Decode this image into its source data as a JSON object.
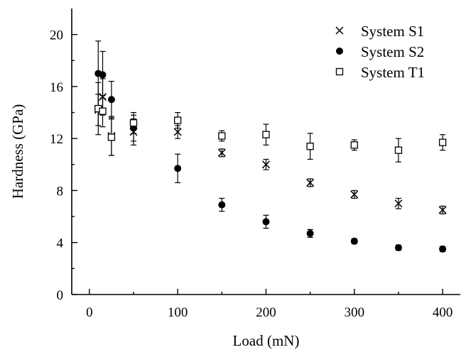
{
  "chart_data": {
    "type": "scatter",
    "xlabel": "Load (mN)",
    "ylabel": "Hardness (GPa)",
    "xlim": [
      -20,
      420
    ],
    "ylim": [
      0,
      22
    ],
    "xticks": [
      "0",
      "100",
      "200",
      "300",
      "400"
    ],
    "yticks": [
      "0",
      "4",
      "8",
      "12",
      "16",
      "20"
    ],
    "grid": false,
    "legend_position": "top-right",
    "series": [
      {
        "name": "System S1",
        "marker": "x",
        "points": [
          {
            "x": 10,
            "y": 14.2,
            "err": 1.2
          },
          {
            "x": 15,
            "y": 15.2,
            "err": 1.4
          },
          {
            "x": 25,
            "y": 12.2,
            "err": 1.5
          },
          {
            "x": 50,
            "y": 12.5,
            "err": 1.0
          },
          {
            "x": 100,
            "y": 12.5,
            "err": 0.5
          },
          {
            "x": 150,
            "y": 10.9,
            "err": 0.3
          },
          {
            "x": 200,
            "y": 10.0,
            "err": 0.4
          },
          {
            "x": 250,
            "y": 8.6,
            "err": 0.3
          },
          {
            "x": 300,
            "y": 7.7,
            "err": 0.3
          },
          {
            "x": 350,
            "y": 7.0,
            "err": 0.4
          },
          {
            "x": 400,
            "y": 6.5,
            "err": 0.3
          }
        ]
      },
      {
        "name": "System S2",
        "marker": "filled-circle",
        "points": [
          {
            "x": 10,
            "y": 17.0,
            "err": 2.5
          },
          {
            "x": 15,
            "y": 16.9,
            "err": 1.8
          },
          {
            "x": 25,
            "y": 15.0,
            "err": 1.4
          },
          {
            "x": 50,
            "y": 12.8,
            "err": 1.0
          },
          {
            "x": 100,
            "y": 9.7,
            "err": 1.1
          },
          {
            "x": 150,
            "y": 6.9,
            "err": 0.5
          },
          {
            "x": 200,
            "y": 5.6,
            "err": 0.5
          },
          {
            "x": 250,
            "y": 4.7,
            "err": 0.3
          },
          {
            "x": 300,
            "y": 4.1,
            "err": 0.2
          },
          {
            "x": 350,
            "y": 3.6,
            "err": 0.2
          },
          {
            "x": 400,
            "y": 3.5,
            "err": 0.2
          }
        ]
      },
      {
        "name": "System T1",
        "marker": "open-square",
        "points": [
          {
            "x": 10,
            "y": 14.3,
            "err": 2.0
          },
          {
            "x": 15,
            "y": 14.1,
            "err": 1.2
          },
          {
            "x": 25,
            "y": 12.1,
            "err": 1.4
          },
          {
            "x": 50,
            "y": 13.2,
            "err": 0.8
          },
          {
            "x": 100,
            "y": 13.4,
            "err": 0.6
          },
          {
            "x": 150,
            "y": 12.2,
            "err": 0.4
          },
          {
            "x": 200,
            "y": 12.3,
            "err": 0.8
          },
          {
            "x": 250,
            "y": 11.4,
            "err": 1.0
          },
          {
            "x": 300,
            "y": 11.5,
            "err": 0.4
          },
          {
            "x": 350,
            "y": 11.1,
            "err": 0.9
          },
          {
            "x": 400,
            "y": 11.7,
            "err": 0.6
          }
        ]
      }
    ]
  }
}
